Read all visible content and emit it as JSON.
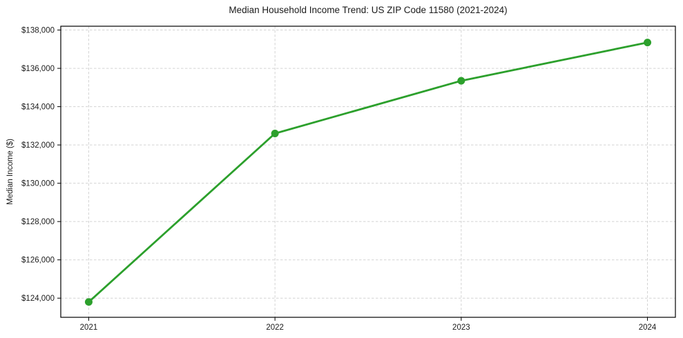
{
  "chart_data": {
    "type": "line",
    "title": "Median Household Income Trend: US ZIP Code 11580 (2021-2024)",
    "xlabel": "",
    "ylabel": "Median Income ($)",
    "x": [
      2021,
      2022,
      2023,
      2024
    ],
    "x_tick_labels": [
      "2021",
      "2022",
      "2023",
      "2024"
    ],
    "series": [
      {
        "name": "Median Household Income",
        "color": "#2ca02c",
        "values": [
          123800,
          132600,
          135350,
          137350
        ]
      }
    ],
    "y_ticks": [
      124000,
      126000,
      128000,
      130000,
      132000,
      134000,
      136000,
      138000
    ],
    "y_tick_labels": [
      "$124,000",
      "$126,000",
      "$128,000",
      "$130,000",
      "$132,000",
      "$134,000",
      "$136,000",
      "$138,000"
    ],
    "xlim": [
      2020.85,
      2024.15
    ],
    "ylim": [
      123000,
      138200
    ],
    "grid": true,
    "grid_color": "#d3d3d3",
    "spine_color": "#000000",
    "text_color": "#1a1a1a",
    "legend_position": "none",
    "line_width": 2.8,
    "marker_radius": 5.5
  }
}
